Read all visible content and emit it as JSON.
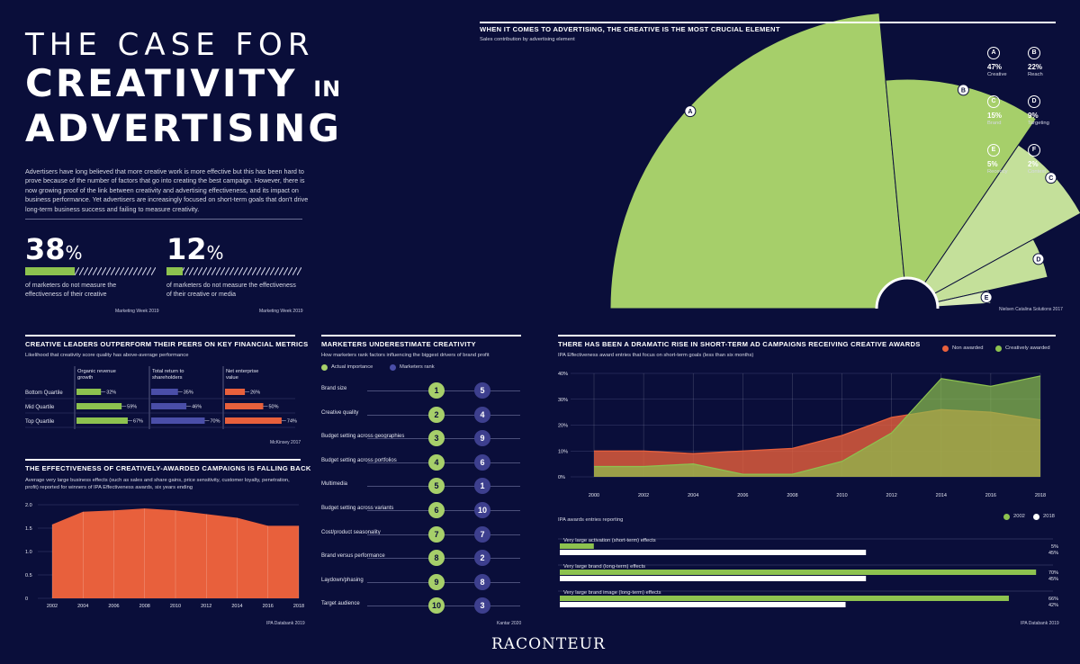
{
  "header": {
    "title_line1": "THE CASE FOR",
    "title_line2": "CREATIVITY",
    "title_line2_suffix": "IN",
    "title_line3": "ADVERTISING",
    "intro": "Advertisers have long believed that more creative work is more effective but this has been hard to prove because of the number of factors that go into creating the best campaign. However, there is now growing proof of the link between creativity and advertising effectiveness, and its impact on business performance. Yet advertisers are increasingly focused on short-term goals that don't drive long-term business success and failing to measure creativity."
  },
  "stats": [
    {
      "value": "38",
      "unit": "%",
      "fraction": 0.38,
      "text": "of marketers do not measure the effectiveness of their creative",
      "source": "Marketing Week 2019"
    },
    {
      "value": "12",
      "unit": "%",
      "fraction": 0.12,
      "text": "of marketers do not measure the effectiveness of their creative or media",
      "source": "Marketing Week 2019"
    }
  ],
  "colors": {
    "background": "#0a0e3a",
    "green": "#8dc24f",
    "light_green": "#c4e09a",
    "orange": "#e8603c",
    "purple": "#4a4ea8",
    "white": "#ffffff"
  },
  "chart_data": [
    {
      "type": "pie",
      "title": "WHEN IT COMES TO ADVERTISING, THE CREATIVE IS THE MOST CRUCIAL ELEMENT",
      "subtitle": "Sales contribution by advertising element",
      "source": "Nielsen Catalina Solutions 2017",
      "slices": [
        {
          "letter": "A",
          "value": 47,
          "label": "Creative"
        },
        {
          "letter": "B",
          "value": 22,
          "label": "Reach"
        },
        {
          "letter": "C",
          "value": 15,
          "label": "Brand"
        },
        {
          "letter": "D",
          "value": 9,
          "label": "Targeting"
        },
        {
          "letter": "E",
          "value": 5,
          "label": "Recency"
        },
        {
          "letter": "F",
          "value": 2,
          "label": "Context"
        }
      ]
    },
    {
      "type": "bar",
      "title": "CREATIVE LEADERS OUTPERFORM THEIR PEERS ON KEY FINANCIAL METRICS",
      "subtitle": "Likelihood that creativity score quality has above-average performance",
      "source": "McKinsey 2017",
      "categories": [
        "Bottom Quartile",
        "Mid Quartile",
        "Top Quartile"
      ],
      "series": [
        {
          "name": "Organic revenue growth",
          "values": [
            32,
            59,
            67
          ]
        },
        {
          "name": "Total return to shareholders",
          "values": [
            35,
            46,
            70
          ]
        },
        {
          "name": "Net enterprise value",
          "values": [
            26,
            50,
            74
          ]
        }
      ]
    },
    {
      "type": "area",
      "title": "THE EFFECTIVENESS OF CREATIVELY-AWARDED CAMPAIGNS IS FALLING BACK",
      "subtitle": "Average very large business effects (such as sales and share gains, price sensitivity, customer loyalty, penetration, profit) reported for winners of IPA Effectiveness awards, six years ending",
      "source": "IPA Databank 2019",
      "x": [
        2002,
        2004,
        2006,
        2008,
        2010,
        2012,
        2014,
        2016,
        2018
      ],
      "x_ticks": [
        "2002",
        "2004",
        "2006",
        "2008",
        "2010",
        "2012",
        "2014",
        "2016",
        "2018"
      ],
      "values": [
        1.58,
        1.85,
        1.88,
        1.92,
        1.88,
        1.8,
        1.72,
        1.55,
        1.55
      ],
      "y_ticks": [
        "0",
        "0.5",
        "1.0",
        "1.5",
        "2.0"
      ],
      "ylim": [
        0,
        2
      ]
    },
    {
      "type": "table",
      "title": "MARKETERS UNDERESTIMATE CREATIVITY",
      "subtitle": "How marketers rank factors influencing the biggest drivers of brand profit",
      "legend": [
        "Actual importance",
        "Marketers rank"
      ],
      "source": "Kantar 2020",
      "rows": [
        {
          "factor": "Brand size",
          "actual": "1",
          "marketers": "5"
        },
        {
          "factor": "Creative quality",
          "actual": "2",
          "marketers": "4"
        },
        {
          "factor": "Budget setting across geographies",
          "actual": "3",
          "marketers": "9"
        },
        {
          "factor": "Budget setting across portfolios",
          "actual": "4",
          "marketers": "6"
        },
        {
          "factor": "Multimedia",
          "actual": "5",
          "marketers": "1"
        },
        {
          "factor": "Budget setting across variants",
          "actual": "6",
          "marketers": "10"
        },
        {
          "factor": "Cost/product seasonality",
          "actual": "7",
          "marketers": "7"
        },
        {
          "factor": "Brand versus performance",
          "actual": "8",
          "marketers": "2"
        },
        {
          "factor": "Laydown/phasing",
          "actual": "9",
          "marketers": "8"
        },
        {
          "factor": "Target audience",
          "actual": "10",
          "marketers": "3"
        }
      ]
    },
    {
      "type": "area",
      "title": "THERE HAS BEEN A DRAMATIC RISE IN SHORT-TERM AD CAMPAIGNS RECEIVING CREATIVE AWARDS",
      "subtitle": "IPA Effectiveness award entries that focus on short-term goals (less than six months)",
      "x": [
        2000,
        2002,
        2004,
        2006,
        2008,
        2010,
        2012,
        2014,
        2016,
        2018
      ],
      "x_ticks": [
        "2000",
        "2002",
        "2004",
        "2006",
        "2008",
        "2010",
        "2012",
        "2014",
        "2016",
        "2018"
      ],
      "y_ticks": [
        "0%",
        "10%",
        "20%",
        "30%",
        "40%"
      ],
      "ylim": [
        0,
        40
      ],
      "series": [
        {
          "name": "Non awarded",
          "values": [
            10,
            10,
            9,
            10,
            11,
            16,
            23,
            26,
            25,
            22
          ]
        },
        {
          "name": "Creatively awarded",
          "values": [
            4,
            4,
            5,
            1,
            1,
            6,
            17,
            38,
            35,
            39
          ]
        }
      ]
    },
    {
      "type": "bar",
      "title": "IPA awards entries reporting",
      "source": "IPA Databank 2019",
      "categories": [
        "Very large activation (short-term) effects",
        "Very large brand (long-term) effects",
        "Very large brand image (long-term) effects"
      ],
      "series": [
        {
          "name": "2002",
          "values": [
            5,
            70,
            66
          ],
          "labels": [
            "5%",
            "70%",
            "66%"
          ]
        },
        {
          "name": "2018",
          "values": [
            45,
            45,
            42
          ],
          "labels": [
            "45%",
            "45%",
            "42%"
          ]
        }
      ]
    }
  ],
  "footer": {
    "logo": "RACONTEUR"
  }
}
